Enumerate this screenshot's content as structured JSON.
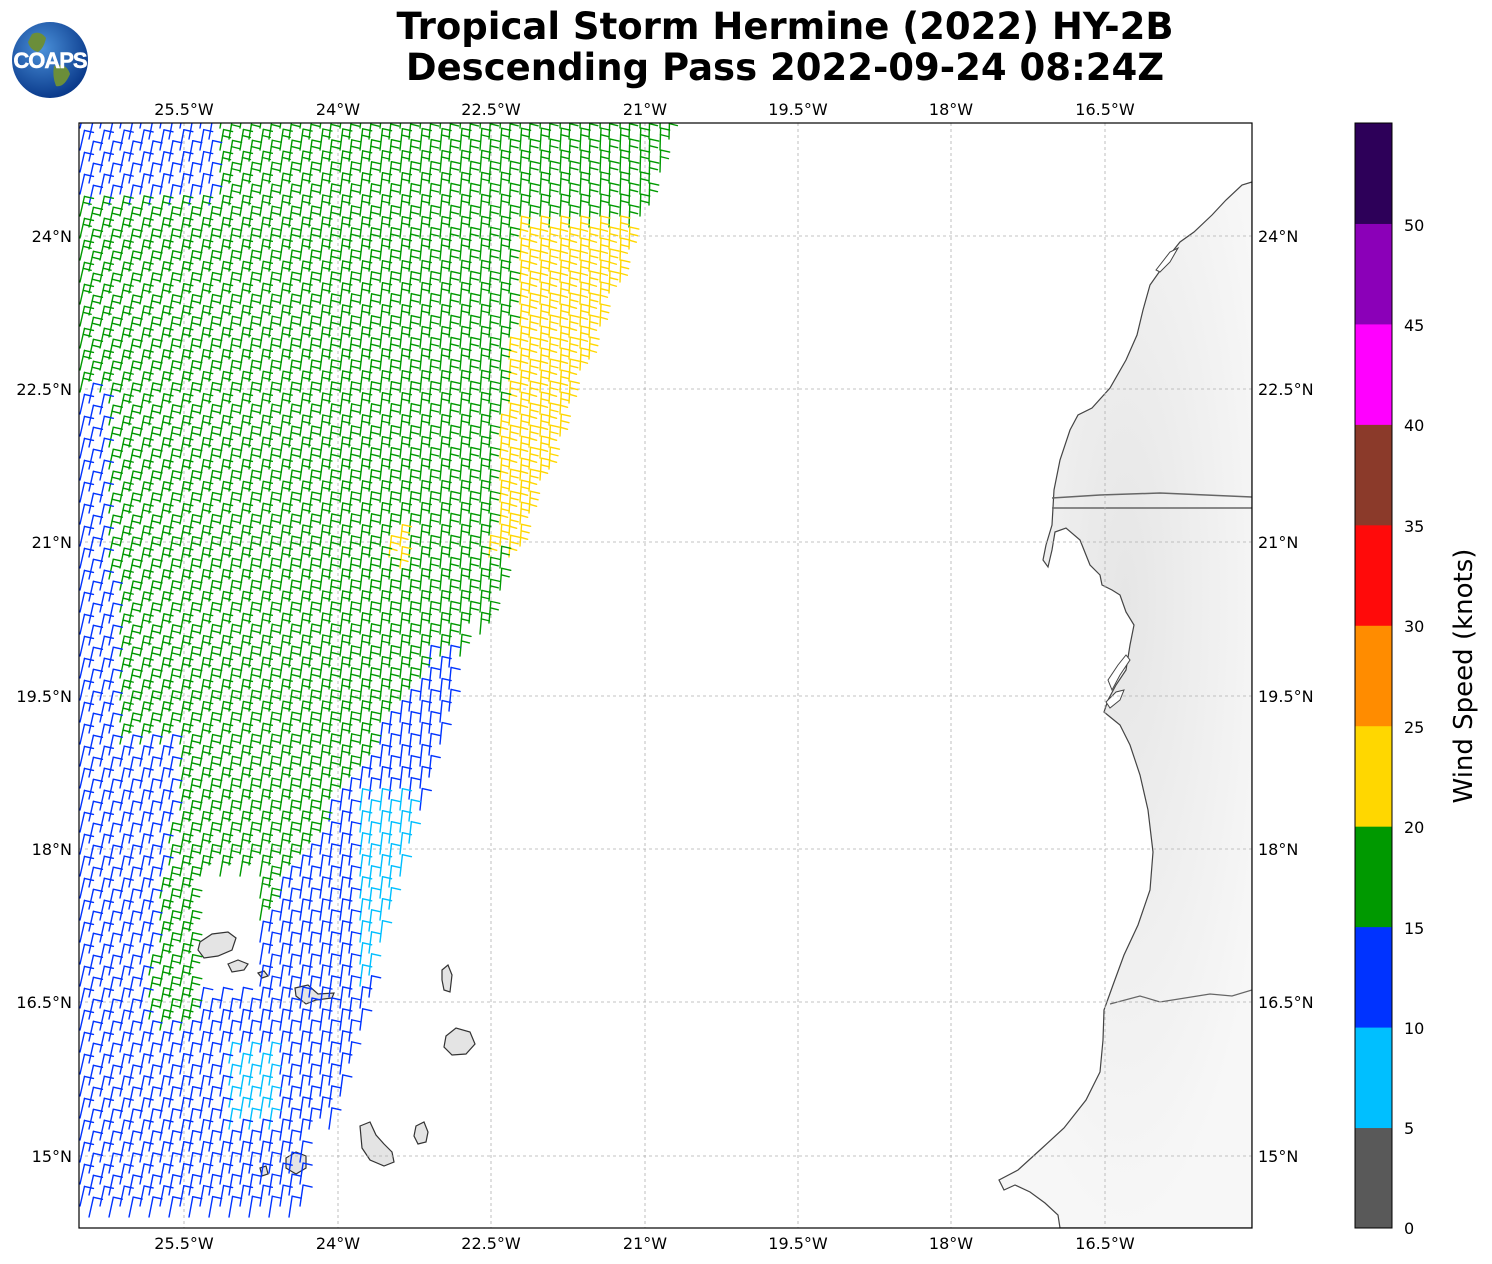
{
  "title_line1": "Tropical Storm Hermine (2022) HY-2B",
  "title_line2": "Descending Pass 2022-09-24 08:24Z",
  "logo_text": "COAPS",
  "lon_ticks": [
    "25.5°W",
    "24°W",
    "22.5°W",
    "21°W",
    "19.5°W",
    "18°W",
    "16.5°W"
  ],
  "lat_ticks": [
    "24°N",
    "22.5°N",
    "21°N",
    "19.5°N",
    "18°N",
    "16.5°N",
    "15°N"
  ],
  "colorbar": {
    "label": "Wind Speed (knots)",
    "ticks": [
      "0",
      "5",
      "10",
      "15",
      "20",
      "25",
      "30",
      "35",
      "40",
      "45",
      "50"
    ],
    "colors": [
      "#595959",
      "#00bfff",
      "#0033ff",
      "#009900",
      "#ffd700",
      "#ff8c00",
      "#ff0a0a",
      "#8b3a2a",
      "#ff00ff",
      "#8b00b8",
      "#2d0059"
    ]
  },
  "map": {
    "extent": {
      "lon_min": -26.5,
      "lon_max": -15.0,
      "lat_min": 14.3,
      "lat_max": 25.1
    },
    "grid": true,
    "swath_colors": {
      "cyan": "#00bfff",
      "blue": "#0033ff",
      "green": "#009900",
      "yellow": "#ffd700"
    }
  }
}
